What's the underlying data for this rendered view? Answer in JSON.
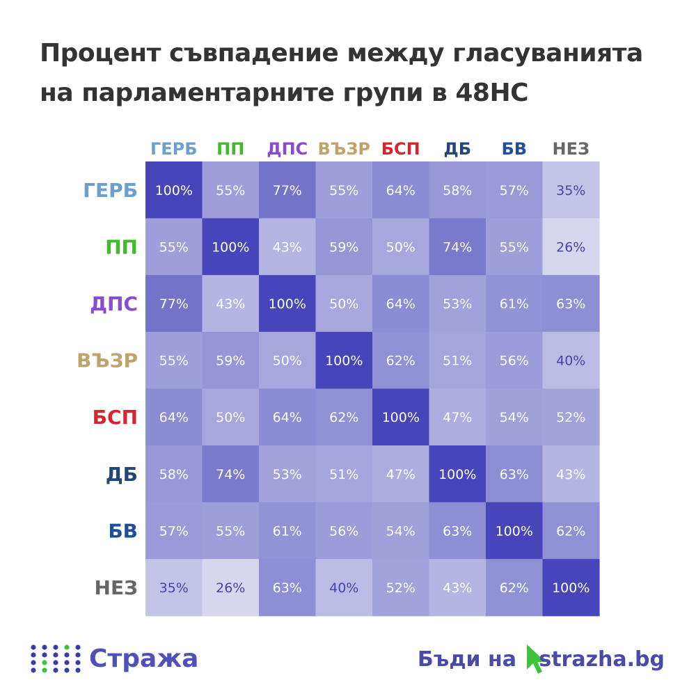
{
  "title": {
    "line1": "Процент съвпадение между гласуванията",
    "line2": "на парламентарните групи в 48НС"
  },
  "chart_data": {
    "type": "heatmap",
    "labels": [
      "ГЕРБ",
      "ПП",
      "ДПС",
      "ВЪЗР",
      "БСП",
      "ДБ",
      "БВ",
      "НЕЗ"
    ],
    "label_colors": [
      "#6a9fd1",
      "#3dbb2a",
      "#8a4ad2",
      "#c0a36a",
      "#d8242c",
      "#24477a",
      "#1f4f9c",
      "#666666"
    ],
    "values": [
      [
        100,
        55,
        77,
        55,
        64,
        58,
        57,
        35
      ],
      [
        55,
        100,
        43,
        59,
        50,
        74,
        55,
        26
      ],
      [
        77,
        43,
        100,
        50,
        64,
        53,
        61,
        63
      ],
      [
        55,
        59,
        50,
        100,
        62,
        51,
        56,
        40
      ],
      [
        64,
        50,
        64,
        62,
        100,
        47,
        54,
        52
      ],
      [
        58,
        74,
        53,
        51,
        47,
        100,
        63,
        43
      ],
      [
        57,
        55,
        61,
        56,
        54,
        63,
        100,
        62
      ],
      [
        35,
        26,
        63,
        40,
        52,
        43,
        62,
        100
      ]
    ],
    "value_suffix": "%",
    "color_scale": {
      "low": "#d6d6ef",
      "high": "#4646ba"
    }
  },
  "footer": {
    "logo_text": "Стража",
    "cta_text": "Бъди на",
    "site_text": "strazha.bg",
    "logo_color": "#5050b8",
    "dot_color_dark": "#3c3ca8",
    "dot_color_green": "#3ec23a"
  }
}
